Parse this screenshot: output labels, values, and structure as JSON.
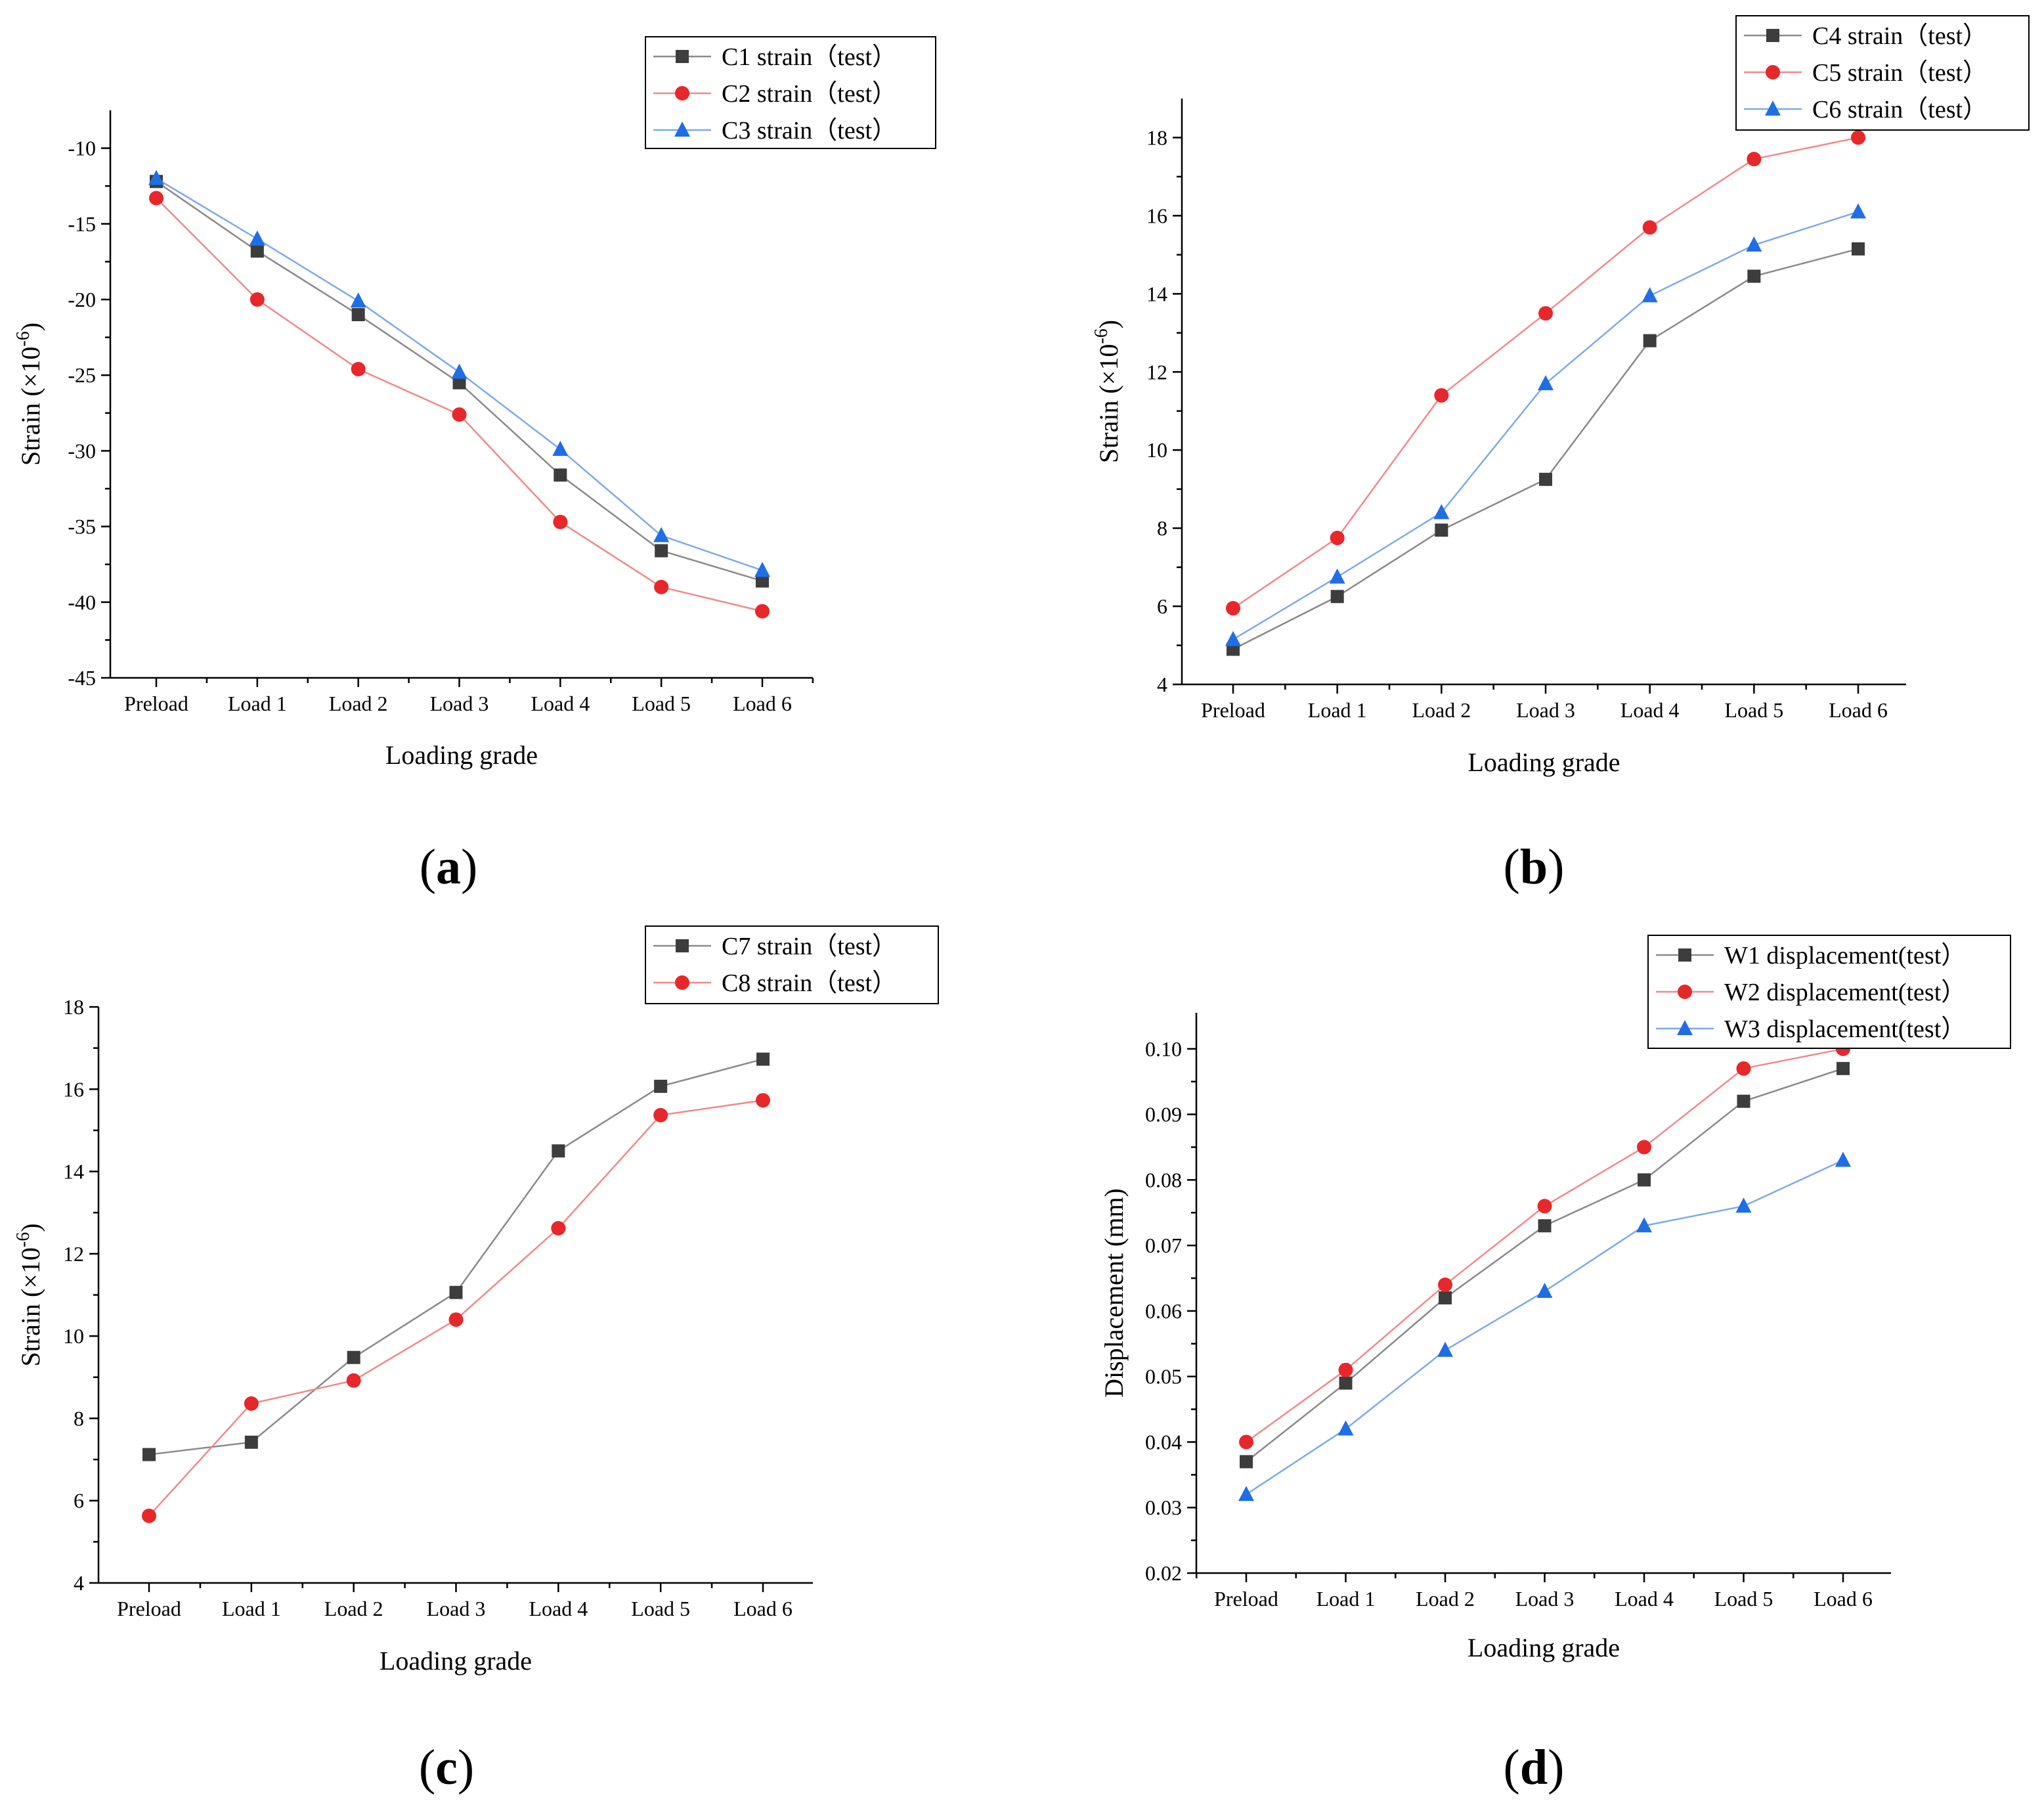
{
  "colors": {
    "black": "#3d3d3d",
    "red": "#e8272a",
    "blue": "#1f6ee5",
    "red_line": "#f08a8a",
    "blue_line": "#7eaaea",
    "black_line": "#8a8a8a"
  },
  "chart_data": [
    {
      "id": "a",
      "type": "line",
      "panel_label": "a",
      "title": "",
      "xlabel": "Loading grade",
      "ylabel": "Strain (×10",
      "ylabel_sup": "-6",
      "ylabel_end": ")",
      "categories": [
        "Preload",
        "Load 1",
        "Load 2",
        "Load 3",
        "Load 4",
        "Load 5",
        "Load 6"
      ],
      "ylim": [
        -45,
        -7.5
      ],
      "yticks": [
        -45,
        -40,
        -35,
        -30,
        -25,
        -20,
        -15,
        -10
      ],
      "ytick_labels": [
        "-45",
        "-40",
        "-35",
        "-30",
        "-25",
        "-20",
        "-15",
        "-10"
      ],
      "legend_position": "top-right",
      "series": [
        {
          "name": "C1 strain（test）",
          "marker": "square",
          "color": "#3d3d3d",
          "line_color": "#8a8a8a",
          "values": [
            -12.2,
            -16.8,
            -21.0,
            -25.5,
            -31.6,
            -36.6,
            -38.6
          ]
        },
        {
          "name": "C2 strain（test）",
          "marker": "circle",
          "color": "#e8272a",
          "line_color": "#f08a8a",
          "values": [
            -13.3,
            -20.0,
            -24.6,
            -27.6,
            -34.7,
            -39.0,
            -40.6
          ]
        },
        {
          "name": "C3 strain（test）",
          "marker": "triangle",
          "color": "#1f6ee5",
          "line_color": "#7eaaea",
          "values": [
            -12.0,
            -16.0,
            -20.1,
            -24.8,
            -29.9,
            -35.6,
            -37.9
          ]
        }
      ]
    },
    {
      "id": "b",
      "type": "line",
      "panel_label": "b",
      "title": "",
      "xlabel": "Loading grade",
      "ylabel": "Strain (×10",
      "ylabel_sup": "-6",
      "ylabel_end": ")",
      "categories": [
        "Preload",
        "Load 1",
        "Load 2",
        "Load 3",
        "Load 4",
        "Load 5",
        "Load 6"
      ],
      "ylim": [
        4,
        19
      ],
      "yticks": [
        4,
        6,
        8,
        10,
        12,
        14,
        16,
        18
      ],
      "ytick_labels": [
        "4",
        "6",
        "8",
        "10",
        "12",
        "14",
        "16",
        "18"
      ],
      "legend_position": "top-right",
      "series": [
        {
          "name": "C4 strain（test）",
          "marker": "square",
          "color": "#3d3d3d",
          "line_color": "#8a8a8a",
          "values": [
            4.9,
            6.25,
            7.95,
            9.25,
            12.8,
            14.45,
            15.15
          ]
        },
        {
          "name": "C5 strain（test）",
          "marker": "circle",
          "color": "#e8272a",
          "line_color": "#f08a8a",
          "values": [
            5.95,
            7.75,
            11.4,
            13.5,
            15.7,
            17.45,
            18.0
          ]
        },
        {
          "name": "C6 strain（test）",
          "marker": "triangle",
          "color": "#1f6ee5",
          "line_color": "#7eaaea",
          "values": [
            5.15,
            6.75,
            8.4,
            11.7,
            13.95,
            15.25,
            16.1
          ]
        }
      ]
    },
    {
      "id": "c",
      "type": "line",
      "panel_label": "c",
      "title": "",
      "xlabel": "Loading grade",
      "ylabel": "Strain (×10",
      "ylabel_sup": "-6",
      "ylabel_end": ")",
      "categories": [
        "Preload",
        "Load 1",
        "Load 2",
        "Load 3",
        "Load 4",
        "Load 5",
        "Load 6"
      ],
      "ylim": [
        4,
        18
      ],
      "yticks": [
        4,
        6,
        8,
        10,
        12,
        14,
        16,
        18
      ],
      "ytick_labels": [
        "4",
        "6",
        "8",
        "10",
        "12",
        "14",
        "16",
        "18"
      ],
      "legend_position": "top-right",
      "series": [
        {
          "name": "C7 strain（test）",
          "marker": "square",
          "color": "#3d3d3d",
          "line_color": "#8a8a8a",
          "values": [
            7.12,
            7.42,
            9.48,
            11.06,
            14.5,
            16.07,
            16.73
          ]
        },
        {
          "name": "C8 strain（test）",
          "marker": "circle",
          "color": "#e8272a",
          "line_color": "#f08a8a",
          "values": [
            5.63,
            8.36,
            8.92,
            10.4,
            12.62,
            15.37,
            15.73
          ]
        }
      ]
    },
    {
      "id": "d",
      "type": "line",
      "panel_label": "d",
      "title": "",
      "xlabel": "Loading grade",
      "ylabel": "Displacement (mm)",
      "ylabel_sup": "",
      "ylabel_end": "",
      "categories": [
        "Preload",
        "Load 1",
        "Load 2",
        "Load 3",
        "Load 4",
        "Load 5",
        "Load 6"
      ],
      "ylim": [
        0.02,
        0.1055
      ],
      "yticks": [
        0.02,
        0.03,
        0.04,
        0.05,
        0.06,
        0.07,
        0.08,
        0.09,
        0.1
      ],
      "ytick_labels": [
        "0.02",
        "0.03",
        "0.04",
        "0.05",
        "0.06",
        "0.07",
        "0.08",
        "0.09",
        "0.10"
      ],
      "legend_position": "top-right",
      "series": [
        {
          "name": "W1 displacement(test）",
          "marker": "square",
          "color": "#3d3d3d",
          "line_color": "#8a8a8a",
          "values": [
            0.037,
            0.049,
            0.062,
            0.073,
            0.08,
            0.092,
            0.097
          ]
        },
        {
          "name": "W2 displacement(test）",
          "marker": "circle",
          "color": "#e8272a",
          "line_color": "#f08a8a",
          "values": [
            0.04,
            0.051,
            0.064,
            0.076,
            0.085,
            0.097,
            0.1
          ]
        },
        {
          "name": "W3 displacement(test）",
          "marker": "triangle",
          "color": "#1f6ee5",
          "line_color": "#7eaaea",
          "values": [
            0.032,
            0.042,
            0.054,
            0.063,
            0.073,
            0.076,
            0.083
          ]
        }
      ]
    }
  ]
}
